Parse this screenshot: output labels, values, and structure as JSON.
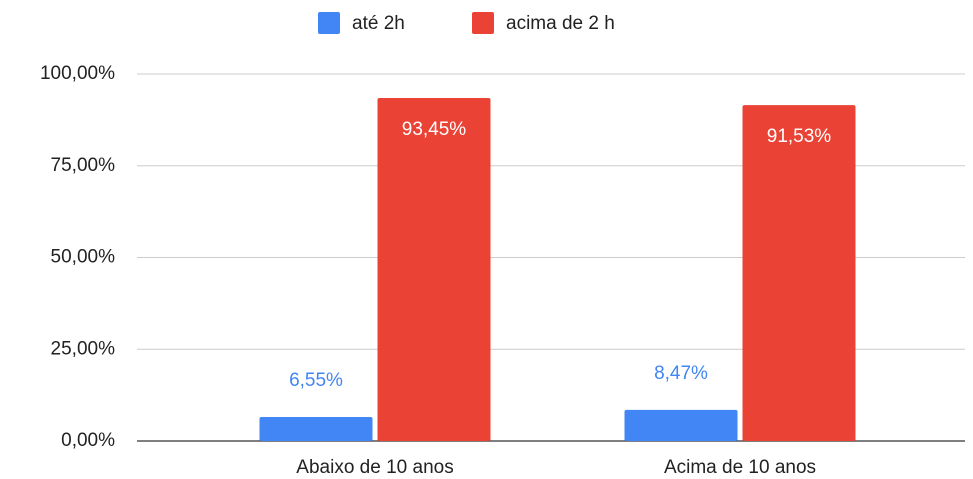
{
  "chart_data": {
    "type": "bar",
    "categories": [
      "Abaixo de 10 anos",
      "Acima de 10 anos"
    ],
    "series": [
      {
        "name": "até 2h",
        "color": "#4285f4",
        "values": [
          6.55,
          8.47
        ],
        "value_labels": [
          "6,55%",
          "8,47%"
        ]
      },
      {
        "name": "acima de 2 h",
        "color": "#ea4335",
        "values": [
          93.45,
          91.53
        ],
        "value_labels": [
          "93,45%",
          "91,53%"
        ]
      }
    ],
    "ylim": [
      0,
      100
    ],
    "yticks": [
      {
        "value": 0,
        "label": "0,00%"
      },
      {
        "value": 25,
        "label": "25,00%"
      },
      {
        "value": 50,
        "label": "50,00%"
      },
      {
        "value": 75,
        "label": "75,00%"
      },
      {
        "value": 100,
        "label": "100,00%"
      }
    ],
    "grid": true,
    "legend": "top"
  }
}
